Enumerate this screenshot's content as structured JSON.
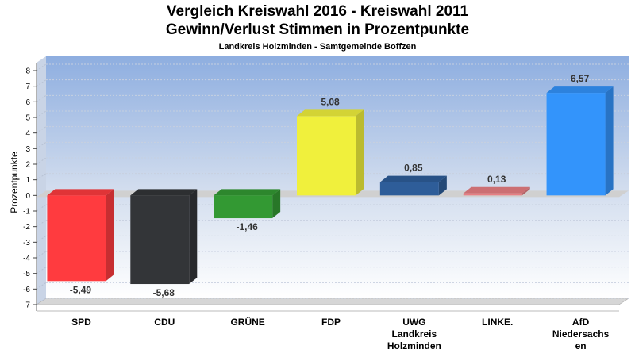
{
  "title_line1": "Vergleich Kreiswahl 2016 - Kreiswahl 2011",
  "title_line2": "Gewinn/Verlust Stimmen in Prozentpunkte",
  "subtitle": "Landkreis Holzminden - Samtgemeinde Boffzen",
  "chart_data": {
    "type": "bar",
    "ylabel": "Prozentpunkte",
    "ylim": [
      -7,
      8
    ],
    "yticks": [
      8,
      7,
      6,
      5,
      4,
      3,
      2,
      1,
      0,
      -1,
      -2,
      -3,
      -4,
      -5,
      -6,
      -7
    ],
    "grid": true,
    "categories": [
      [
        "SPD"
      ],
      [
        "CDU"
      ],
      [
        "GRÜNE"
      ],
      [
        "FDP"
      ],
      [
        "UWG",
        "Landkreis",
        "Holzminden"
      ],
      [
        "LINKE."
      ],
      [
        "AfD",
        "Niedersachs",
        "en"
      ]
    ],
    "values": [
      -5.49,
      -5.68,
      -1.46,
      5.08,
      0.85,
      0.13,
      6.57
    ],
    "value_labels": [
      "-5,49",
      "-5,68",
      "-1,46",
      "5,08",
      "0,85",
      "0,13",
      "6,57"
    ],
    "colors": [
      "#ff3b3f",
      "#333538",
      "#339933",
      "#f0f03c",
      "#2e5d99",
      "#e87e83",
      "#3394fb"
    ]
  }
}
